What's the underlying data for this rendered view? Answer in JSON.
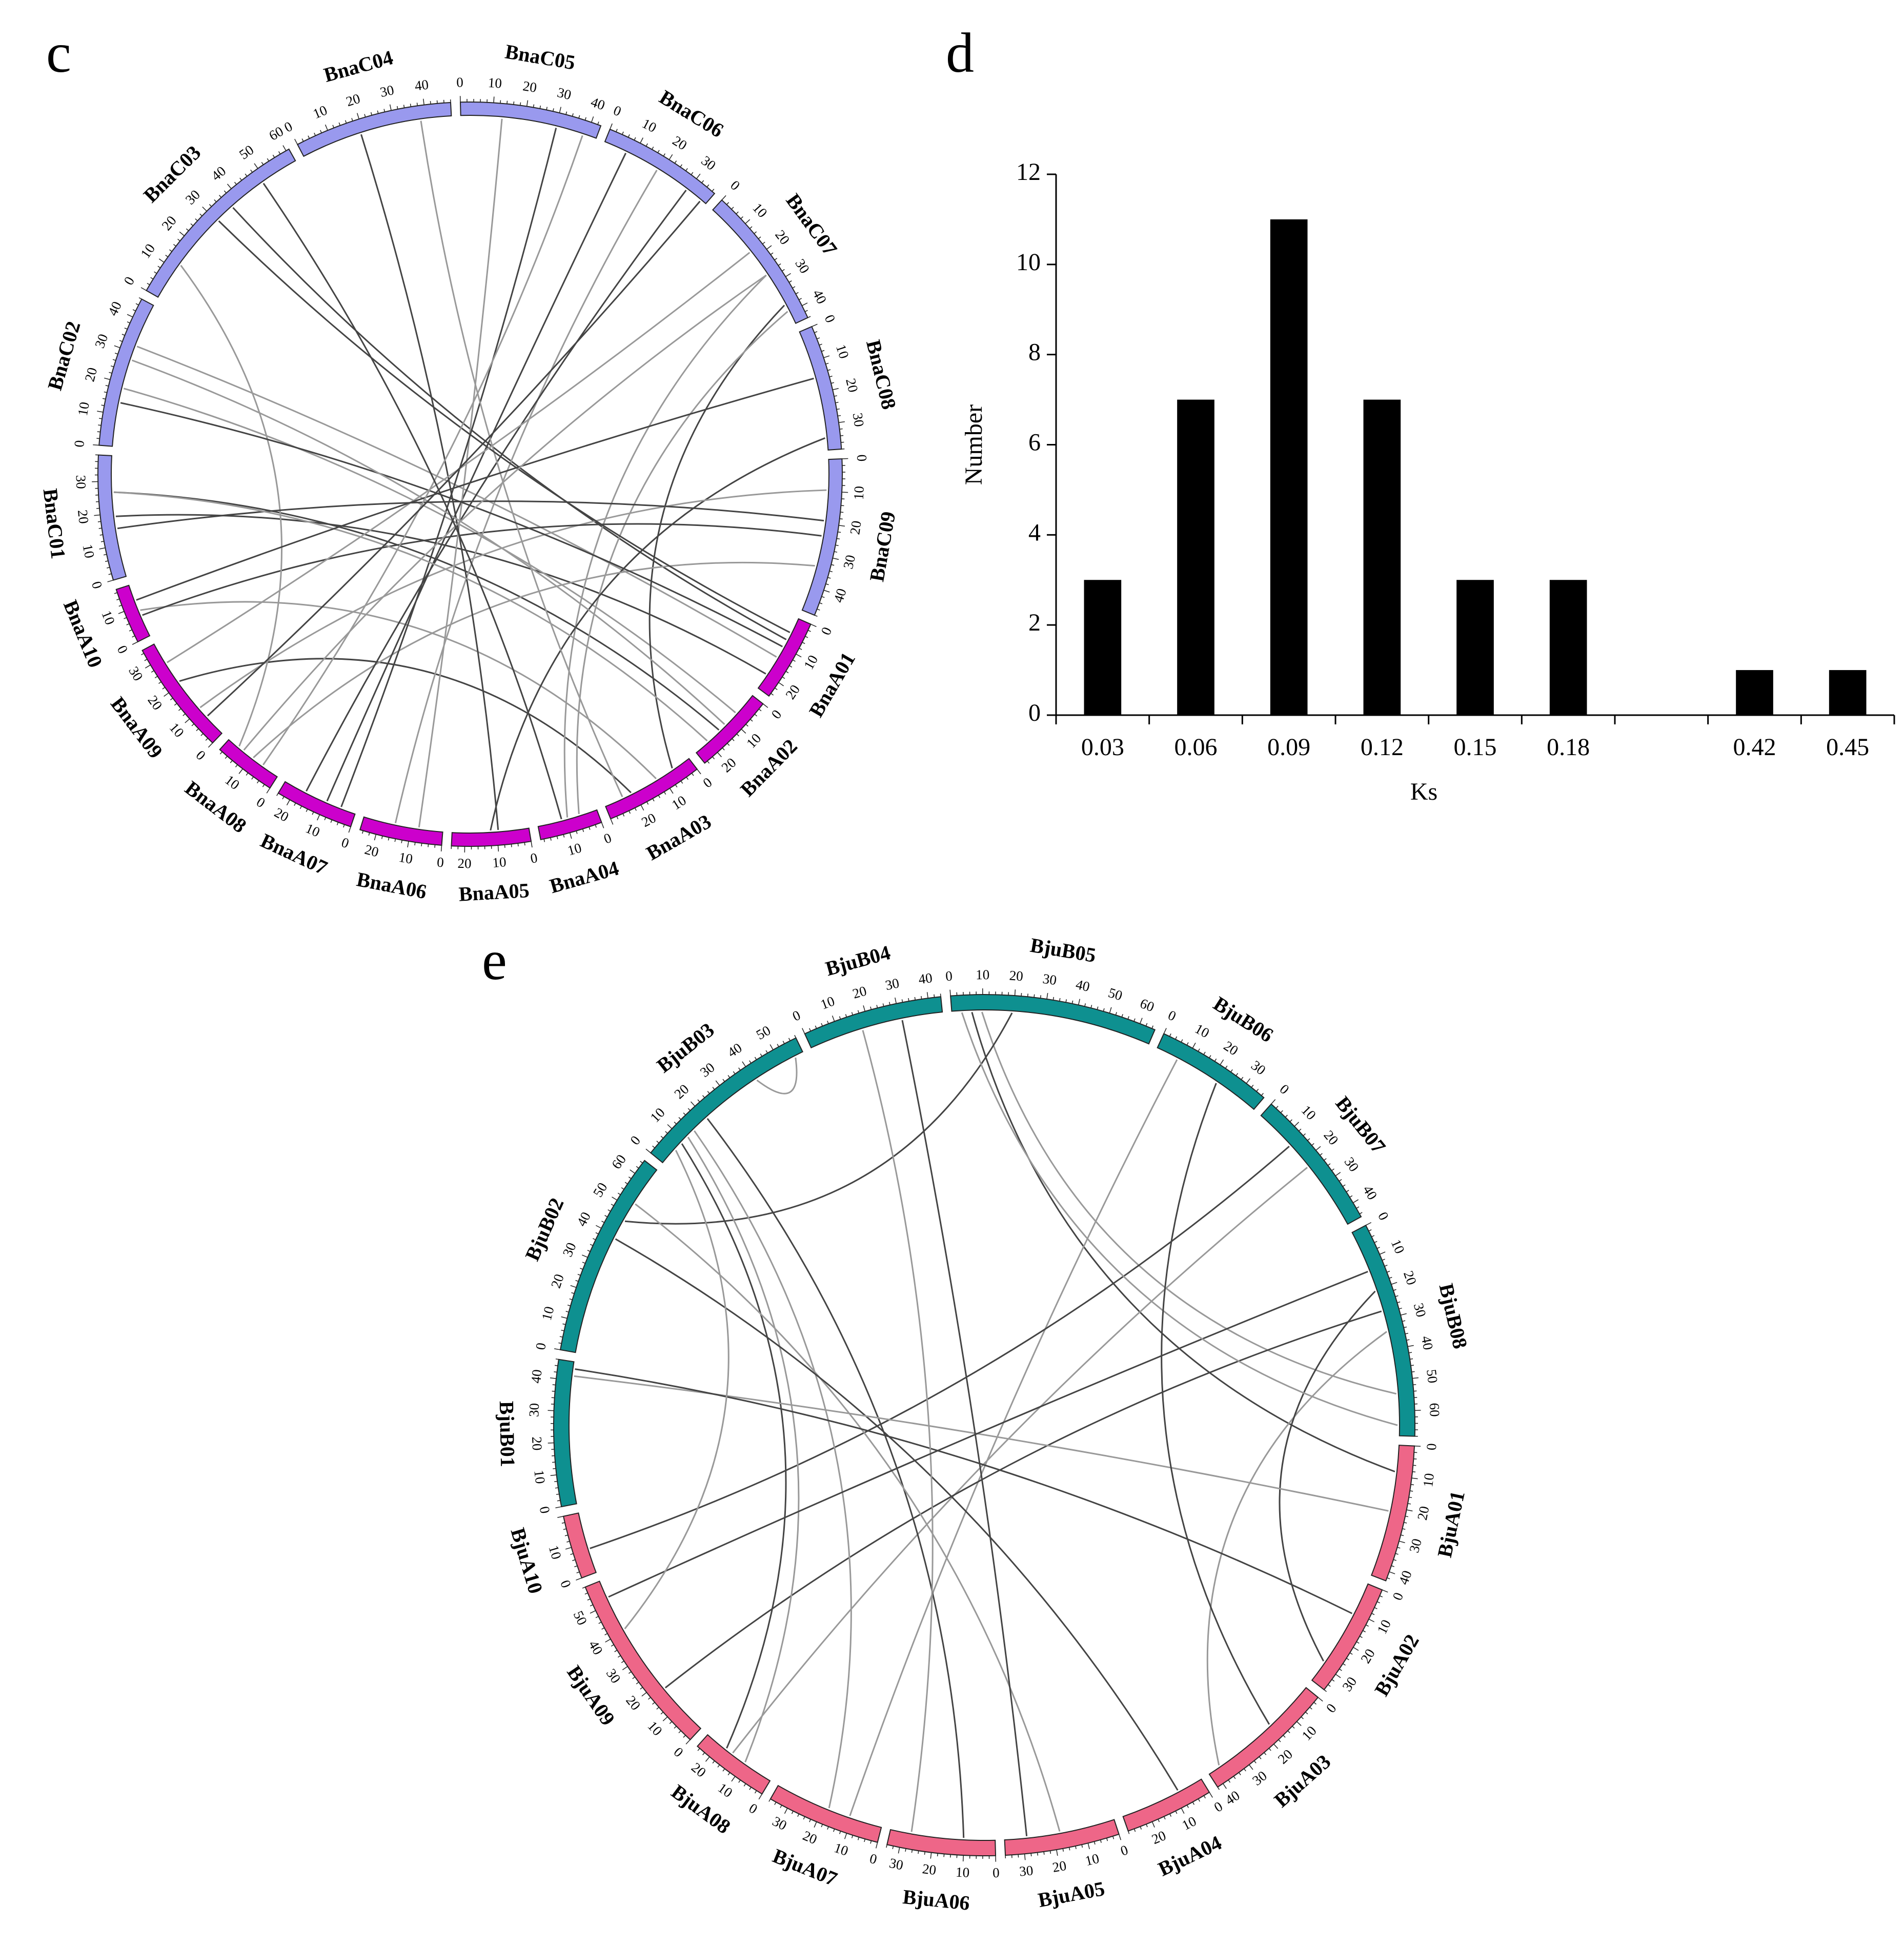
{
  "panel_labels": {
    "c": "c",
    "d": "d",
    "e": "e"
  },
  "colors": {
    "bna_c": "#9999ee",
    "bna_a": "#cc00cc",
    "bju_b": "#0e9090",
    "bju_a": "#ee6688",
    "link_dark": "#444444",
    "link_light": "#999999",
    "bar": "#000000"
  },
  "chart_data": [
    {
      "type": "circos",
      "panel": "c",
      "chromosomes": [
        {
          "name": "BnaC05",
          "size": 43,
          "group": "C",
          "ticks": [
            "0",
            "10",
            "20",
            "30",
            "40"
          ]
        },
        {
          "name": "BnaC06",
          "size": 37,
          "group": "C",
          "ticks": [
            "0",
            "10",
            "20",
            "30"
          ]
        },
        {
          "name": "BnaC07",
          "size": 44,
          "group": "C",
          "ticks": [
            "0",
            "10",
            "20",
            "30",
            "40"
          ]
        },
        {
          "name": "BnaC08",
          "size": 38,
          "group": "C",
          "ticks": [
            "0",
            "10",
            "20",
            "30"
          ]
        },
        {
          "name": "BnaC09",
          "size": 48,
          "group": "C",
          "ticks": [
            "0",
            "10",
            "20",
            "30",
            "40"
          ]
        },
        {
          "name": "BnaA01",
          "size": 25,
          "group": "A",
          "ticks": [
            "0",
            "10",
            "20"
          ]
        },
        {
          "name": "BnaA02",
          "size": 25,
          "group": "A",
          "ticks": [
            "0",
            "10",
            "20"
          ]
        },
        {
          "name": "BnaA03",
          "size": 30,
          "group": "A",
          "ticks": [
            "0",
            "10",
            "20"
          ]
        },
        {
          "name": "BnaA04",
          "size": 19,
          "group": "A",
          "ticks": [
            "0",
            "10"
          ]
        },
        {
          "name": "BnaA05",
          "size": 24,
          "group": "A",
          "ticks": [
            "0",
            "10",
            "20"
          ]
        },
        {
          "name": "BnaA06",
          "size": 25,
          "group": "A",
          "ticks": [
            "0",
            "10",
            "20"
          ]
        },
        {
          "name": "BnaA07",
          "size": 24,
          "group": "A",
          "ticks": [
            "0",
            "10",
            "20"
          ]
        },
        {
          "name": "BnaA08",
          "size": 19,
          "group": "A",
          "ticks": [
            "0",
            "10"
          ]
        },
        {
          "name": "BnaA09",
          "size": 35,
          "group": "A",
          "ticks": [
            "0",
            "10",
            "20",
            "30"
          ]
        },
        {
          "name": "BnaA10",
          "size": 17,
          "group": "A",
          "ticks": [
            "0",
            "10"
          ]
        },
        {
          "name": "BnaC01",
          "size": 38,
          "group": "C",
          "ticks": [
            "0",
            "10",
            "20",
            "30"
          ]
        },
        {
          "name": "BnaC02",
          "size": 46,
          "group": "C",
          "ticks": [
            "0",
            "10",
            "20",
            "30",
            "40"
          ]
        },
        {
          "name": "BnaC03",
          "size": 61,
          "group": "C",
          "ticks": [
            "0",
            "10",
            "20",
            "30",
            "40",
            "50",
            "60"
          ]
        },
        {
          "name": "BnaC04",
          "size": 48,
          "group": "C",
          "ticks": [
            "0",
            "10",
            "20",
            "30",
            "40"
          ]
        }
      ],
      "links": [
        [
          5,
          0.3,
          17,
          0.6
        ],
        [
          5,
          0.55,
          16,
          0.7
        ],
        [
          5,
          0.8,
          15,
          0.5
        ],
        [
          6,
          0.3,
          16,
          0.4
        ],
        [
          6,
          0.6,
          15,
          0.7
        ],
        [
          7,
          0.4,
          14,
          0.5
        ],
        [
          7,
          0.7,
          13,
          0.6
        ],
        [
          8,
          0.5,
          2,
          0.6
        ],
        [
          2,
          0.85,
          7,
          0.2
        ],
        [
          2,
          0.9,
          8,
          0.3
        ],
        [
          3,
          0.9,
          9,
          0.5
        ],
        [
          4,
          0.2,
          13,
          0.3
        ],
        [
          4,
          0.5,
          14,
          0.4
        ],
        [
          4,
          0.7,
          12,
          0.5
        ],
        [
          1,
          0.2,
          11,
          0.4
        ],
        [
          1,
          0.5,
          10,
          0.6
        ],
        [
          1,
          0.8,
          11,
          0.7
        ],
        [
          0,
          0.3,
          10,
          0.3
        ],
        [
          0,
          0.7,
          11,
          0.2
        ],
        [
          17,
          0.2,
          12,
          0.8
        ],
        [
          18,
          0.4,
          9,
          0.4
        ],
        [
          18,
          0.8,
          7,
          0.8
        ],
        [
          16,
          0.3,
          5,
          0.4
        ],
        [
          16,
          0.6,
          6,
          0.5
        ],
        [
          15,
          0.4,
          4,
          0.4
        ],
        [
          15,
          0.7,
          6,
          0.8
        ],
        [
          17,
          0.5,
          5,
          0.2
        ],
        [
          13,
          0.8,
          2,
          0.4
        ],
        [
          3,
          0.4,
          14,
          0.7
        ],
        [
          0,
          0.9,
          12,
          0.3
        ],
        [
          1,
          0.95,
          13,
          0.2
        ],
        [
          2,
          0.6,
          12,
          0.7
        ],
        [
          17,
          0.8,
          8,
          0.6
        ]
      ]
    },
    {
      "type": "bar",
      "panel": "d",
      "categories": [
        "0.03",
        "0.06",
        "0.09",
        "0.12",
        "0.15",
        "0.18",
        "",
        "0.42",
        "0.45"
      ],
      "values": [
        3,
        7,
        11,
        7,
        3,
        3,
        0,
        1,
        1
      ],
      "title": "",
      "xlabel": "Ks",
      "ylabel": "Number",
      "ylim": [
        0,
        12
      ],
      "yticks": [
        "0",
        "2",
        "4",
        "6",
        "8",
        "10",
        "12"
      ]
    },
    {
      "type": "circos",
      "panel": "e",
      "chromosomes": [
        {
          "name": "BjuB05",
          "size": 65,
          "group": "B",
          "ticks": [
            "0",
            "10",
            "20",
            "30",
            "40",
            "50",
            "60"
          ]
        },
        {
          "name": "BjuB06",
          "size": 37,
          "group": "B",
          "ticks": [
            "0",
            "10",
            "20",
            "30"
          ]
        },
        {
          "name": "BjuB07",
          "size": 45,
          "group": "B",
          "ticks": [
            "0",
            "10",
            "20",
            "30",
            "40"
          ]
        },
        {
          "name": "BjuB08",
          "size": 68,
          "group": "B",
          "ticks": [
            "0",
            "10",
            "20",
            "30",
            "40",
            "50",
            "60"
          ]
        },
        {
          "name": "BjuA01",
          "size": 43,
          "group": "A",
          "ticks": [
            "0",
            "10",
            "20",
            "30",
            "40"
          ]
        },
        {
          "name": "BjuA02",
          "size": 36,
          "group": "A",
          "ticks": [
            "0",
            "10",
            "20",
            "30"
          ]
        },
        {
          "name": "BjuA03",
          "size": 42,
          "group": "A",
          "ticks": [
            "0",
            "10",
            "20",
            "30",
            "40"
          ]
        },
        {
          "name": "BjuA04",
          "size": 28,
          "group": "A",
          "ticks": [
            "0",
            "10",
            "20"
          ]
        },
        {
          "name": "BjuA05",
          "size": 36,
          "group": "A",
          "ticks": [
            "0",
            "10",
            "20",
            "30"
          ]
        },
        {
          "name": "BjuA06",
          "size": 34,
          "group": "A",
          "ticks": [
            "0",
            "10",
            "20",
            "30"
          ]
        },
        {
          "name": "BjuA07",
          "size": 36,
          "group": "A",
          "ticks": [
            "0",
            "10",
            "20",
            "30"
          ]
        },
        {
          "name": "BjuA08",
          "size": 25,
          "group": "A",
          "ticks": [
            "0",
            "10",
            "20"
          ]
        },
        {
          "name": "BjuA09",
          "size": 58,
          "group": "A",
          "ticks": [
            "0",
            "10",
            "20",
            "30",
            "40",
            "50"
          ]
        },
        {
          "name": "BjuA10",
          "size": 20,
          "group": "A",
          "ticks": [
            "0",
            "10"
          ]
        },
        {
          "name": "BjuB01",
          "size": 46,
          "group": "B",
          "ticks": [
            "0",
            "10",
            "20",
            "30",
            "40"
          ]
        },
        {
          "name": "BjuB02",
          "size": 65,
          "group": "B",
          "ticks": [
            "0",
            "10",
            "20",
            "30",
            "40",
            "50",
            "60"
          ]
        },
        {
          "name": "BjuB03",
          "size": 58,
          "group": "B",
          "ticks": [
            "0",
            "10",
            "20",
            "30",
            "40",
            "50"
          ]
        },
        {
          "name": "BjuB04",
          "size": 44,
          "group": "B",
          "ticks": [
            "0",
            "10",
            "20",
            "30",
            "40"
          ]
        }
      ],
      "links": [
        [
          0,
          0.1,
          4,
          0.2
        ],
        [
          0,
          0.15,
          3,
          0.8
        ],
        [
          0,
          0.3,
          15,
          0.7
        ],
        [
          1,
          0.2,
          10,
          0.3
        ],
        [
          2,
          0.3,
          13,
          0.4
        ],
        [
          2,
          0.5,
          11,
          0.6
        ],
        [
          3,
          0.4,
          12,
          0.3
        ],
        [
          3,
          0.5,
          6,
          0.9
        ],
        [
          3,
          0.3,
          5,
          0.8
        ],
        [
          16,
          0.2,
          11,
          0.4
        ],
        [
          16,
          0.15,
          11,
          0.7
        ],
        [
          16,
          0.25,
          10,
          0.5
        ],
        [
          16,
          0.35,
          9,
          0.3
        ],
        [
          15,
          0.8,
          8,
          0.5
        ],
        [
          15,
          0.6,
          7,
          0.3
        ],
        [
          14,
          0.9,
          4,
          0.5
        ],
        [
          14,
          0.95,
          5,
          0.3
        ],
        [
          17,
          0.4,
          9,
          0.8
        ],
        [
          17,
          0.7,
          8,
          0.8
        ],
        [
          16,
          0.7,
          16,
          0.95
        ],
        [
          12,
          0.9,
          3,
          0.2
        ],
        [
          0,
          0.05,
          3,
          0.95
        ],
        [
          1,
          0.6,
          6,
          0.4
        ],
        [
          16,
          0.1,
          12,
          0.7
        ]
      ]
    }
  ]
}
